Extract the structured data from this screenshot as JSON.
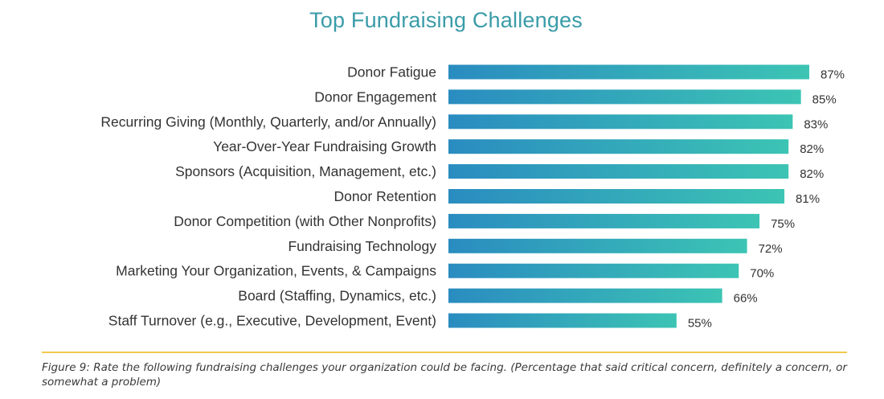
{
  "colors": {
    "title": "#3a9ca8",
    "bar_start": "#2a8cc0",
    "bar_end": "#3cc4b4",
    "divider": "#f2c94c"
  },
  "caption": "Figure 9: Rate the following fundraising challenges your organization could be facing. (Percentage that said critical concern, definitely a concern, or somewhat a problem)",
  "chart_data": {
    "type": "bar",
    "orientation": "horizontal",
    "title": "Top Fundraising Challenges",
    "categories": [
      "Donor Fatigue",
      "Donor Engagement",
      "Recurring Giving (Monthly, Quarterly, and/or Annually)",
      "Year-Over-Year Fundraising Growth",
      "Sponsors (Acquisition, Management, etc.)",
      "Donor Retention",
      "Donor Competition (with Other Nonprofits)",
      "Fundraising Technology",
      "Marketing Your Organization, Events,  & Campaigns",
      "Board (Staffing, Dynamics, etc.)",
      "Staff Turnover (e.g., Executive, Development, Event)"
    ],
    "values": [
      87,
      85,
      83,
      82,
      82,
      81,
      75,
      72,
      70,
      66,
      55
    ],
    "value_labels": [
      "87%",
      "85%",
      "83%",
      "82%",
      "82%",
      "81%",
      "75%",
      "72%",
      "70%",
      "66%",
      "55%"
    ],
    "xlim": [
      0,
      100
    ],
    "grid": false,
    "legend": "none"
  }
}
